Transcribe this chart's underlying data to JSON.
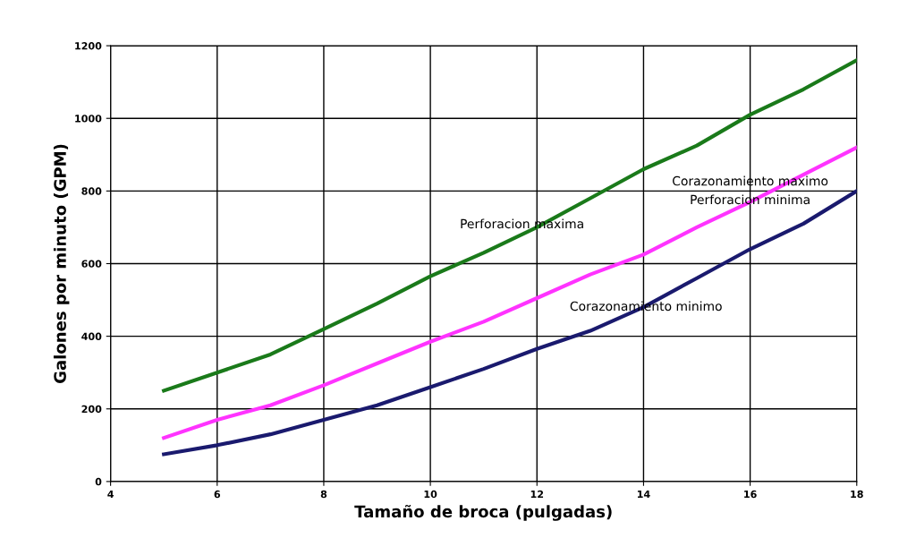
{
  "chart_data": {
    "type": "line",
    "xlabel": "Tamaño de broca (pulgadas)",
    "ylabel": "Galones por minuto (GPM)",
    "x": [
      5,
      6,
      7,
      8,
      9,
      10,
      11,
      12,
      13,
      14,
      15,
      16,
      17,
      18
    ],
    "series": [
      {
        "color": "#1a7a1a",
        "values": [
          250,
          300,
          350,
          420,
          490,
          565,
          630,
          700,
          780,
          860,
          925,
          1010,
          1080,
          1160
        ]
      },
      {
        "color": "#ff33ff",
        "values": [
          120,
          170,
          210,
          265,
          325,
          385,
          440,
          505,
          570,
          625,
          700,
          770,
          845,
          920
        ]
      },
      {
        "color": "#1a1a6e",
        "values": [
          75,
          100,
          130,
          170,
          210,
          260,
          310,
          365,
          415,
          480,
          560,
          640,
          710,
          800
        ]
      }
    ],
    "xlim": [
      4,
      18
    ],
    "xticks": [
      4,
      6,
      8,
      10,
      12,
      14,
      16,
      18
    ],
    "ylim": [
      0,
      1200
    ],
    "yticks": [
      0,
      200,
      400,
      600,
      800,
      1000,
      1200
    ],
    "grid": true,
    "marker": "none",
    "line_style": "solid",
    "annotations": [
      {
        "text": "Perforacion maxima",
        "x": 12,
        "y": 700
      },
      {
        "text": "Corazonamiento maximo",
        "x": 16,
        "y": 770
      },
      {
        "text": "Perforacion minima",
        "x": 16,
        "y": 770
      },
      {
        "text": "Corazonamiento minimo",
        "x": 14,
        "y": 480
      }
    ]
  }
}
